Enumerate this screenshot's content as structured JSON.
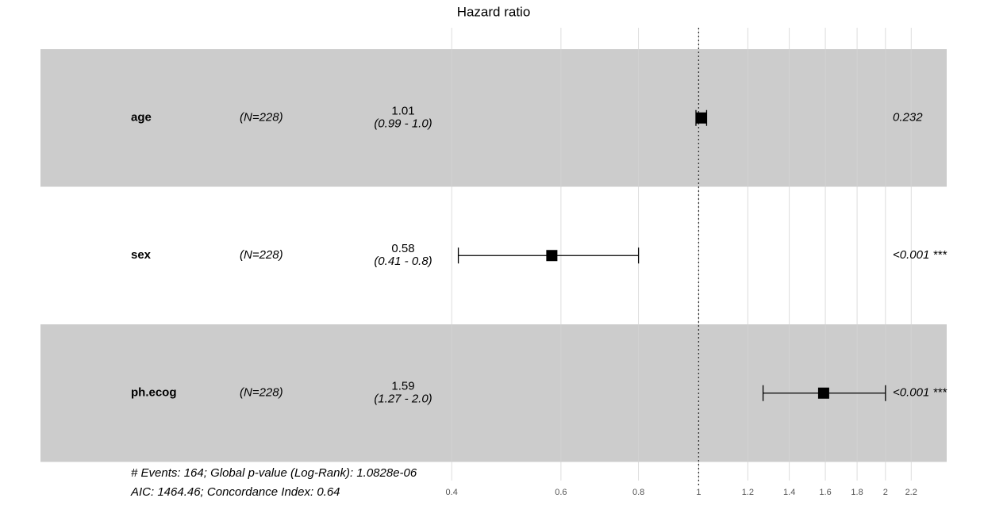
{
  "chart_data": {
    "type": "forest",
    "title": "Hazard ratio",
    "categories": [
      "age",
      "sex",
      "ph.ecog"
    ],
    "n_labels": [
      "(N=228)",
      "(N=228)",
      "(N=228)"
    ],
    "values": [
      1.01,
      0.58,
      1.59
    ],
    "lower": [
      0.99,
      0.41,
      1.27
    ],
    "upper": [
      1.03,
      0.8,
      2.0
    ],
    "ci_labels": [
      "(0.99 - 1.0)",
      "(0.41 - 0.8)",
      "(1.27 - 2.0)"
    ],
    "p_labels": [
      "0.232",
      "<0.001 ***",
      "<0.001 ***"
    ],
    "reference_line": 1,
    "log_x": true,
    "xlim": [
      0.087,
      2.51
    ],
    "xticks": [
      0.4,
      0.6,
      0.8,
      1,
      1.2,
      1.4,
      1.6,
      1.8,
      2,
      2.2
    ],
    "grid": true,
    "color": "#000000",
    "band_color": "#cccccc",
    "footnotes": [
      "# Events: 164; Global p-value (Log-Rank): 1.0828e-06",
      "AIC: 1464.46; Concordance Index: 0.64"
    ]
  }
}
